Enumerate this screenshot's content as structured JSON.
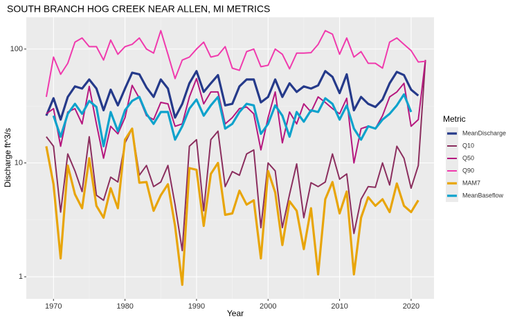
{
  "chart_data": {
    "type": "line",
    "title": "SOUTH BRANCH HOG CREEK NEAR ALLEN, MI  METRICS",
    "x_label": "Year",
    "y_label": "Discharge ft^3/s",
    "legend_title": "Metric",
    "log_y": true,
    "grid": true,
    "x": [
      1969,
      1970,
      1971,
      1972,
      1973,
      1974,
      1975,
      1976,
      1977,
      1978,
      1979,
      1980,
      1981,
      1982,
      1983,
      1984,
      1985,
      1986,
      1987,
      1988,
      1989,
      1990,
      1991,
      1992,
      1993,
      1994,
      1995,
      1996,
      1997,
      1998,
      1999,
      2000,
      2001,
      2002,
      2003,
      2004,
      2005,
      2006,
      2007,
      2008,
      2009,
      2010,
      2011,
      2012,
      2013,
      2014,
      2015,
      2016,
      2017,
      2018,
      2019,
      2020,
      2021,
      2022
    ],
    "xlim": [
      1966.2,
      2023.2
    ],
    "xticks": [
      1970,
      1980,
      1990,
      2000,
      2010,
      2020
    ],
    "x_minor_ticks": [
      1975,
      1985,
      1995,
      2005,
      2015
    ],
    "ylim": [
      0.64,
      190
    ],
    "yticks": [
      1,
      10,
      100
    ],
    "y_minor_ticks": [
      3.16,
      31.6
    ],
    "series": [
      {
        "name": "MeanDischarge",
        "color": "#253a8a",
        "values": [
          26,
          37,
          24,
          38,
          47,
          45,
          54,
          45,
          29,
          44,
          32,
          45,
          62,
          60,
          46,
          38,
          54,
          45,
          25,
          33,
          50,
          64,
          42,
          50,
          59,
          32,
          33,
          47,
          54,
          54,
          34,
          38,
          54,
          38,
          50,
          42,
          47,
          45,
          48,
          64,
          57,
          41,
          60,
          29,
          38,
          33,
          31,
          36,
          50,
          63,
          59,
          44,
          39,
          null
        ]
      },
      {
        "name": "Q10",
        "color": "#8b2e5e",
        "values": [
          17,
          14,
          3.7,
          12,
          8.5,
          5.6,
          17,
          5.2,
          4.7,
          7.5,
          6.8,
          15,
          20,
          7.8,
          9.5,
          6.2,
          6.8,
          9.5,
          4.3,
          1.7,
          14,
          16,
          3.8,
          16,
          19,
          6.2,
          8.4,
          7.8,
          12,
          13,
          2.7,
          10,
          8.5,
          2.7,
          5.3,
          9.8,
          3.3,
          6.7,
          6.2,
          6.8,
          12,
          7.2,
          8,
          2.4,
          4.8,
          6.2,
          6.1,
          10,
          6.4,
          14,
          11,
          6,
          9.5,
          80
        ]
      },
      {
        "name": "Q50",
        "color": "#b5177e",
        "values": [
          27,
          30,
          14,
          28,
          30,
          22,
          47,
          22,
          11,
          21,
          18,
          25,
          48,
          37,
          26,
          24,
          34,
          33,
          21,
          22,
          38,
          55,
          33,
          42,
          42,
          22,
          25,
          30,
          31,
          27,
          13,
          25,
          42,
          15,
          28,
          22,
          33,
          28,
          38,
          34,
          30,
          27,
          37,
          10,
          20,
          21,
          20,
          26,
          38,
          42,
          50,
          21,
          24,
          80
        ]
      },
      {
        "name": "Q90",
        "color": "#f03aad",
        "values": [
          38,
          85,
          60,
          75,
          115,
          125,
          105,
          105,
          80,
          120,
          90,
          105,
          110,
          125,
          100,
          92,
          145,
          90,
          55,
          80,
          85,
          100,
          115,
          85,
          88,
          105,
          68,
          65,
          95,
          100,
          70,
          72,
          100,
          90,
          67,
          92,
          92,
          93,
          110,
          145,
          135,
          90,
          125,
          85,
          95,
          75,
          75,
          68,
          115,
          125,
          110,
          97,
          77,
          78
        ]
      },
      {
        "name": "MAM7",
        "color": "#e8a50a",
        "values": [
          14,
          6.5,
          1.45,
          9.5,
          5.3,
          4,
          11,
          4.2,
          3.3,
          6,
          4,
          16,
          20,
          6.7,
          6.8,
          3.8,
          5.2,
          6.5,
          2.8,
          0.85,
          9,
          8.7,
          2.8,
          8,
          10,
          3.5,
          3.6,
          5.7,
          4.3,
          4.7,
          1.45,
          8.5,
          5.5,
          1.9,
          4.6,
          3.8,
          1.75,
          4,
          1.05,
          4.8,
          6.8,
          3.6,
          5.6,
          1.05,
          3.3,
          5,
          4.2,
          4.8,
          3.7,
          6.6,
          4.2,
          3.7,
          4.7,
          null
        ]
      },
      {
        "name": "MeanBaseflow",
        "color": "#0da2cc",
        "values": [
          null,
          26,
          17,
          27,
          33,
          27,
          35,
          31,
          14,
          28,
          19,
          29,
          35,
          38,
          27,
          22,
          28,
          28,
          16,
          21,
          30,
          36,
          26,
          32,
          38,
          20,
          22,
          28,
          33,
          32,
          18,
          22,
          32,
          26,
          17,
          28,
          23,
          29,
          28,
          37,
          33,
          24,
          32,
          20,
          16,
          21,
          20,
          24,
          27,
          32,
          40,
          28,
          null,
          null
        ]
      }
    ]
  }
}
